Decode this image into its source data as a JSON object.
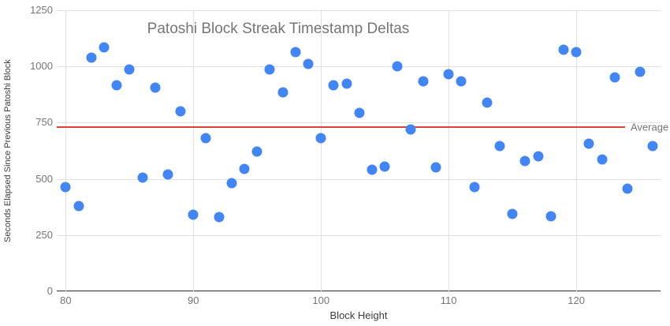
{
  "chart_data": {
    "type": "scatter",
    "title": "Patoshi Block Streak Timestamp Deltas",
    "xlabel": "Block Height",
    "ylabel": "Seconds Elapsed Since Previous Patoshi Block",
    "xlim": [
      79.3,
      126.6
    ],
    "ylim": [
      0,
      1250
    ],
    "x_gridlines": [
      80,
      90,
      100,
      110,
      120
    ],
    "y_gridlines": [
      0,
      250,
      500,
      750,
      1000,
      1250
    ],
    "grid": true,
    "legend_position": "none",
    "series": [
      {
        "name": "Seconds elapsed since previous Patoshi block",
        "color": "#4285f4",
        "points": [
          [
            80,
            465
          ],
          [
            81,
            380
          ],
          [
            82,
            1040
          ],
          [
            83,
            1085
          ],
          [
            84,
            915
          ],
          [
            85,
            985
          ],
          [
            86,
            505
          ],
          [
            87,
            905
          ],
          [
            88,
            520
          ],
          [
            89,
            800
          ],
          [
            90,
            340
          ],
          [
            91,
            680
          ],
          [
            92,
            330
          ],
          [
            93,
            480
          ],
          [
            94,
            545
          ],
          [
            95,
            620
          ],
          [
            96,
            985
          ],
          [
            97,
            885
          ],
          [
            98,
            1065
          ],
          [
            99,
            1010
          ],
          [
            100,
            680
          ],
          [
            101,
            915
          ],
          [
            102,
            925
          ],
          [
            103,
            795
          ],
          [
            104,
            540
          ],
          [
            105,
            555
          ],
          [
            106,
            1000
          ],
          [
            107,
            720
          ],
          [
            108,
            935
          ],
          [
            109,
            550
          ],
          [
            110,
            965
          ],
          [
            111,
            935
          ],
          [
            112,
            465
          ],
          [
            113,
            840
          ],
          [
            114,
            645
          ],
          [
            115,
            345
          ],
          [
            116,
            580
          ],
          [
            117,
            600
          ],
          [
            118,
            335
          ],
          [
            119,
            1075
          ],
          [
            120,
            1065
          ],
          [
            121,
            655
          ],
          [
            122,
            585
          ],
          [
            123,
            950
          ],
          [
            124,
            455
          ],
          [
            125,
            975
          ],
          [
            126,
            645
          ]
        ]
      }
    ],
    "average_line": {
      "label": "Average",
      "value": 730,
      "color": "#db4437"
    }
  },
  "colors": {
    "background": "#ffffff",
    "gridline": "#e0e0e0",
    "axis_line": "#424242",
    "tick_text": "#757575",
    "title_text": "#757575",
    "axis_title_text": "#3c3c3c",
    "point": "#4285f4",
    "average_line": "#db4437"
  }
}
